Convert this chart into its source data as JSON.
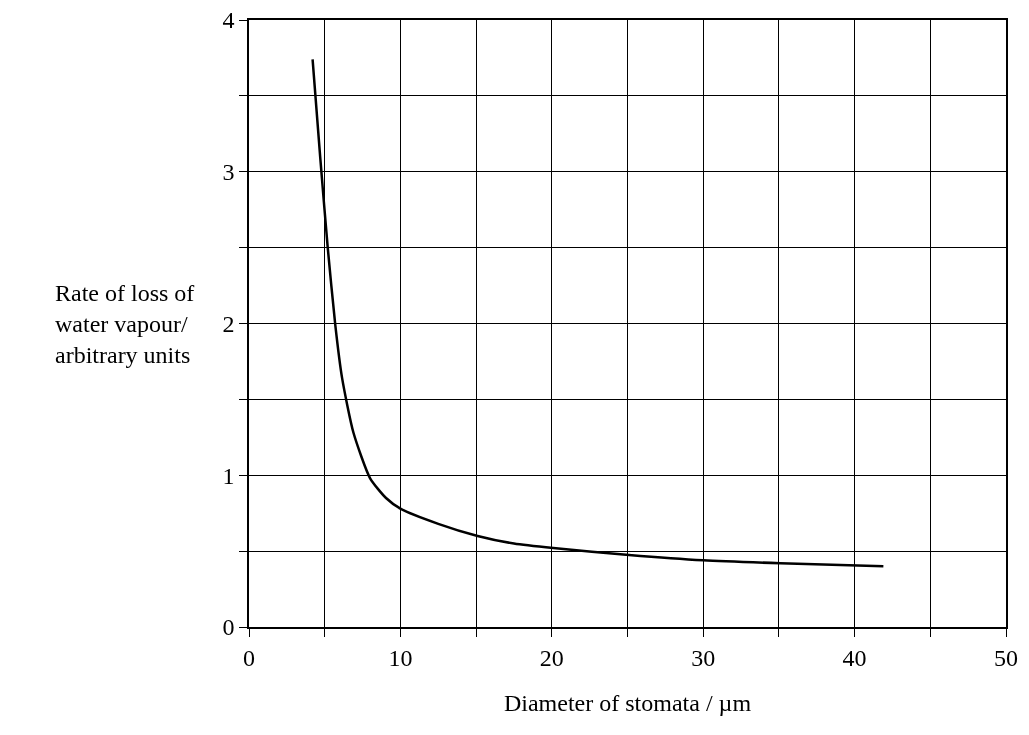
{
  "chart_data": {
    "type": "line",
    "xlabel": "Diameter of stomata / µm",
    "ylabel": "Rate of loss of\nwater vapour/\narbitrary units",
    "series": [
      {
        "color": "#000000",
        "x": [
          4.2,
          4.7,
          5.2,
          5.7,
          6.15,
          6.9,
          8.0,
          9.05,
          10,
          12.5,
          15.1,
          17.5,
          20.1,
          25.1,
          30,
          35.1,
          41.9
        ],
        "values": [
          3.74,
          3.1,
          2.5,
          1.99,
          1.64,
          1.28,
          0.98,
          0.85,
          0.78,
          0.68,
          0.6,
          0.55,
          0.52,
          0.475,
          0.44,
          0.42,
          0.4
        ]
      }
    ],
    "xlim": [
      0,
      50
    ],
    "ylim": [
      0,
      4
    ],
    "xticks": [
      0,
      {
        "value": 5,
        "label": null
      },
      10,
      {
        "value": 15,
        "label": null
      },
      20,
      {
        "value": 25,
        "label": null
      },
      30,
      {
        "value": 35,
        "label": null
      },
      40,
      {
        "value": 45,
        "label": null
      },
      50
    ],
    "yticks": [
      0,
      {
        "value": 0.5,
        "label": null
      },
      1,
      {
        "value": 1.5,
        "label": null
      },
      2,
      {
        "value": 2.5,
        "label": null
      },
      3,
      {
        "value": 3.5,
        "label": null
      },
      4
    ],
    "grid": true,
    "marker": "none",
    "line_style": "solid"
  }
}
